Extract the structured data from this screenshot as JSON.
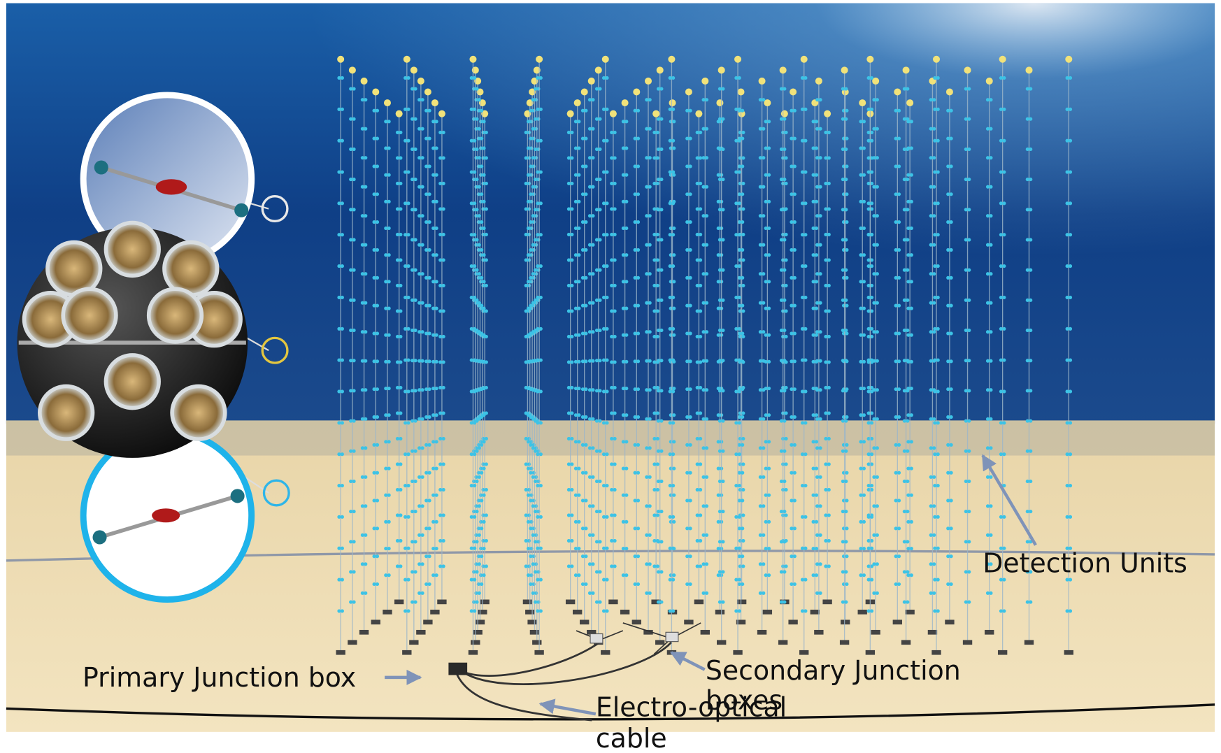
{
  "labels": {
    "detection_units": "Detection Units",
    "primary_junction_box": "Primary Junction box",
    "secondary_junction_boxes": [
      "Secondary Junction",
      "boxes"
    ],
    "electro_optical_cable": [
      "Electro-optical",
      "cable"
    ]
  }
}
